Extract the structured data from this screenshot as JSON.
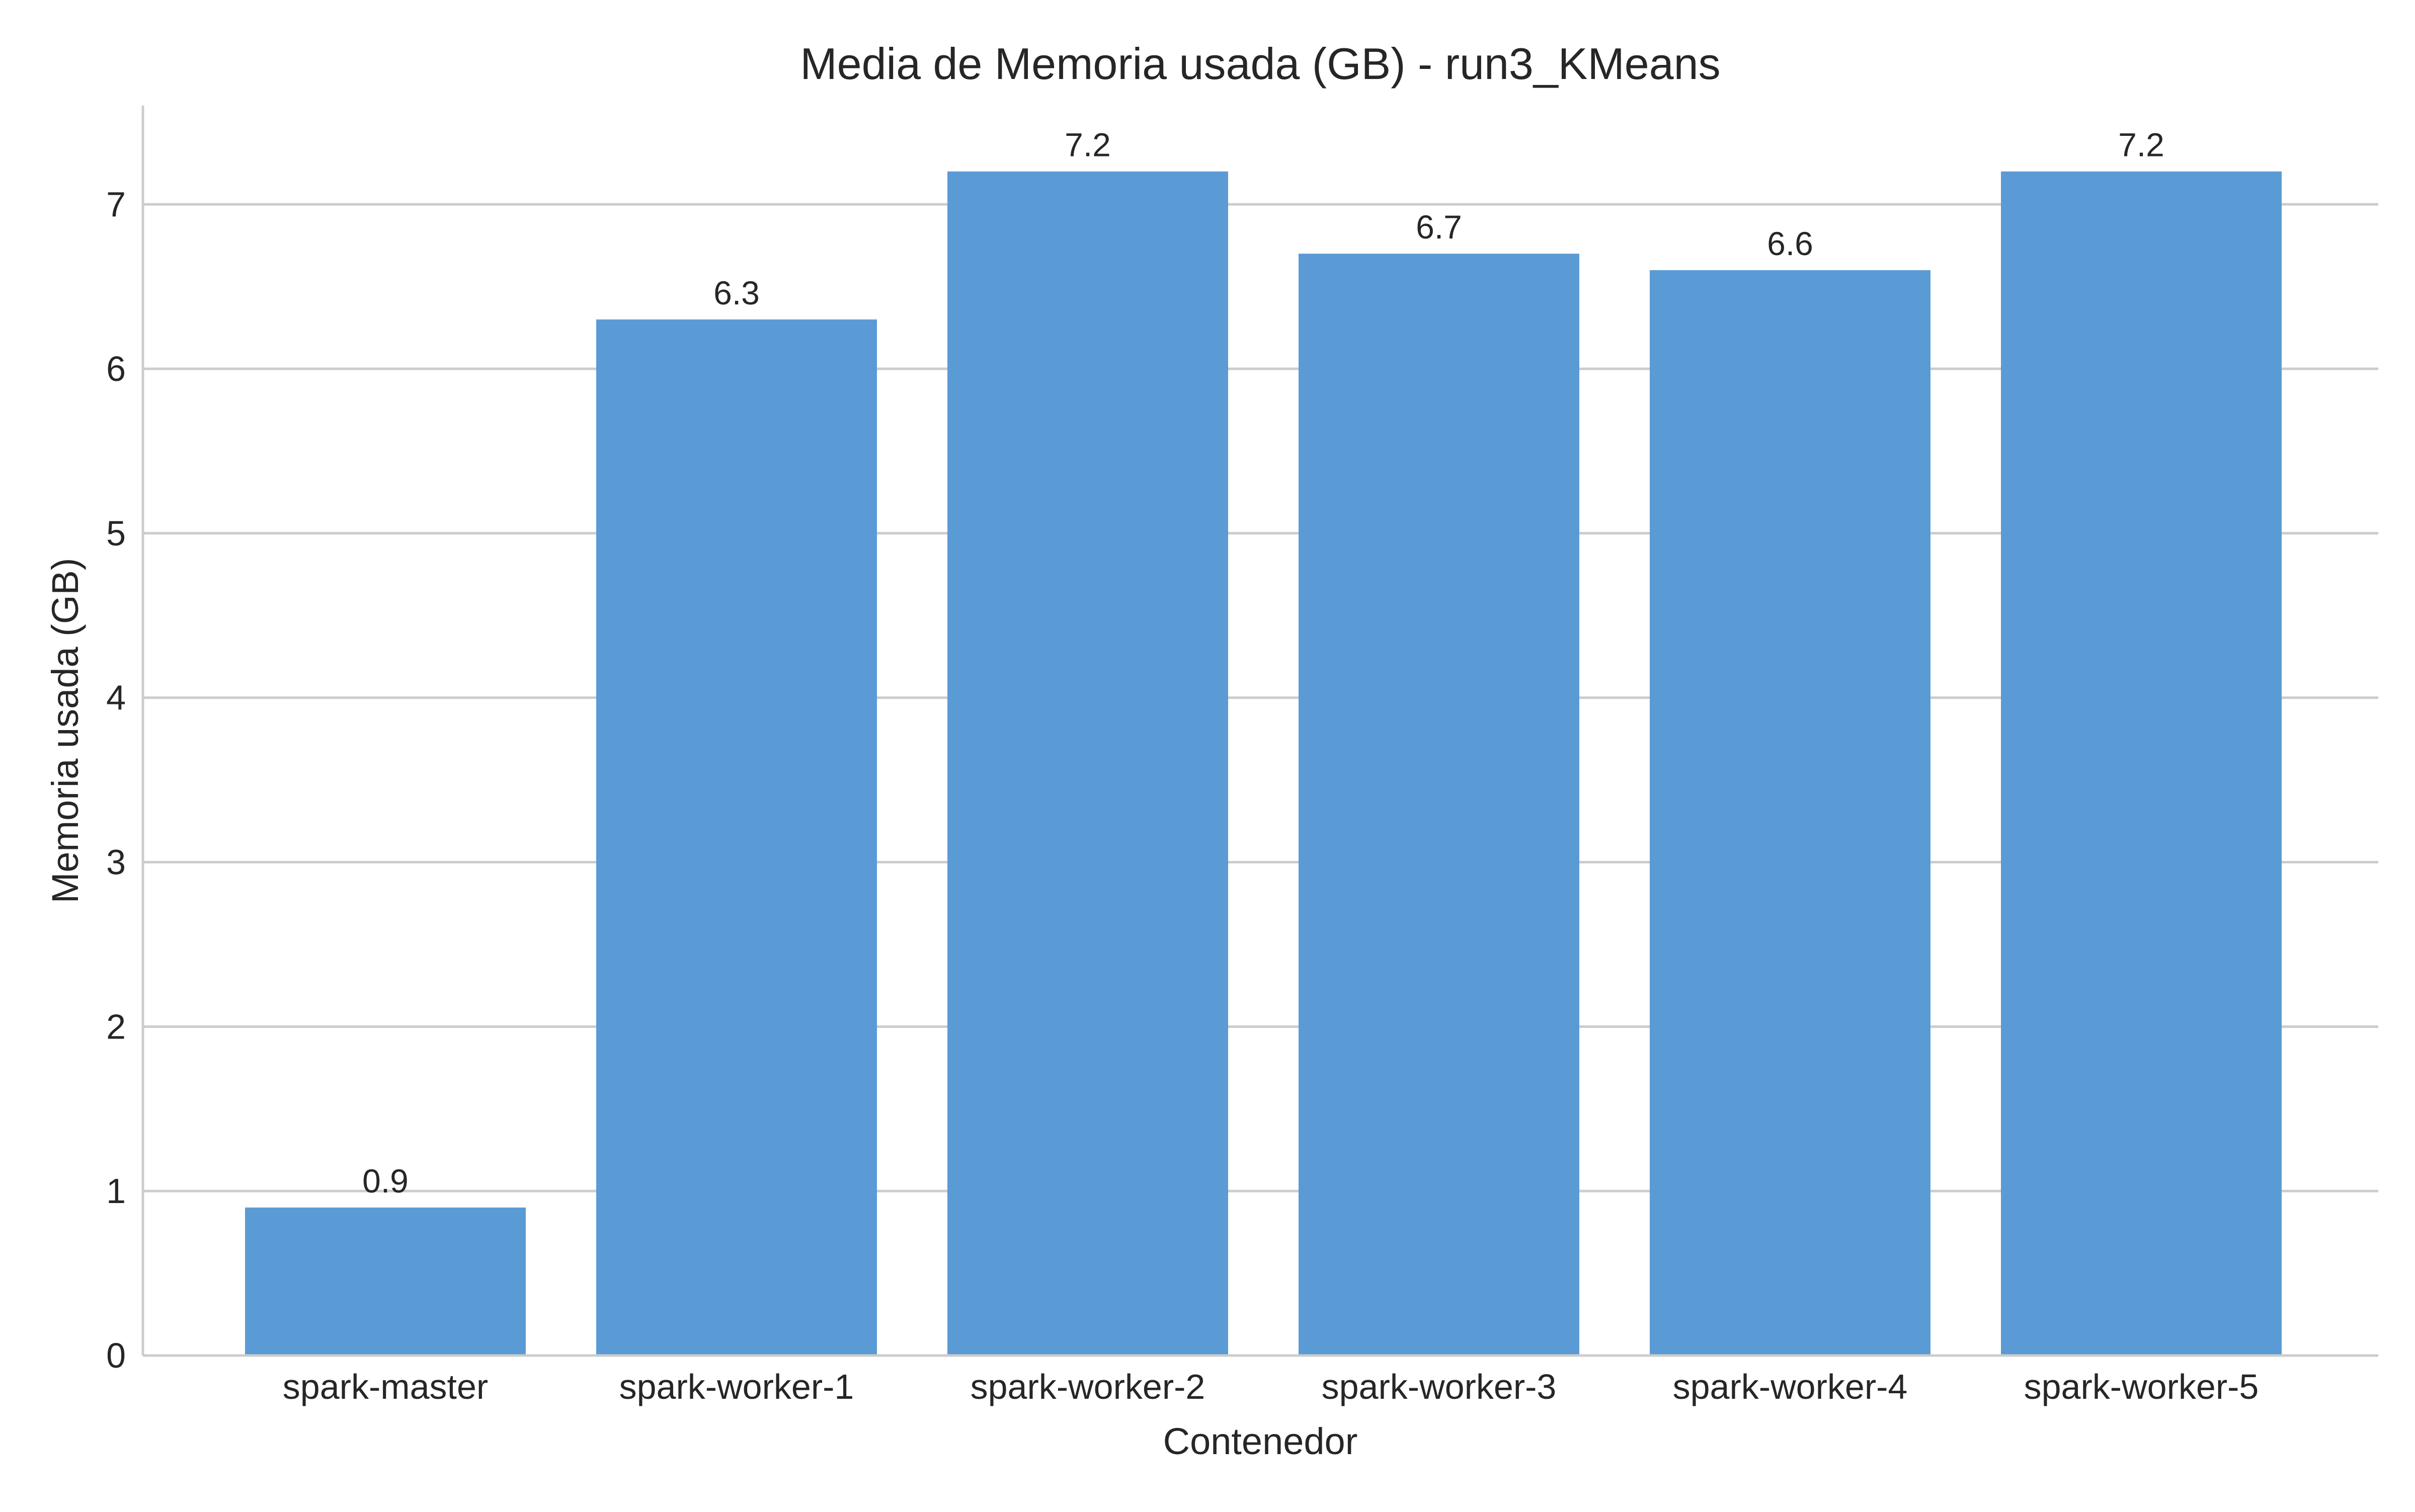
{
  "chart_data": {
    "type": "bar",
    "title": "Media de Memoria usada (GB) - run3_KMeans",
    "xlabel": "Contenedor",
    "ylabel": "Memoria usada (GB)",
    "categories": [
      "spark-master",
      "spark-worker-1",
      "spark-worker-2",
      "spark-worker-3",
      "spark-worker-4",
      "spark-worker-5"
    ],
    "values": [
      0.9,
      6.3,
      7.2,
      6.7,
      6.6,
      7.2
    ],
    "value_labels": [
      "0.9",
      "6.3",
      "7.2",
      "6.7",
      "6.6",
      "7.2"
    ],
    "ylim": [
      0,
      7.6
    ],
    "yticks": [
      0,
      1,
      2,
      3,
      4,
      5,
      6,
      7
    ],
    "grid": "horizontal",
    "bar_color": "#5b9bd5"
  }
}
